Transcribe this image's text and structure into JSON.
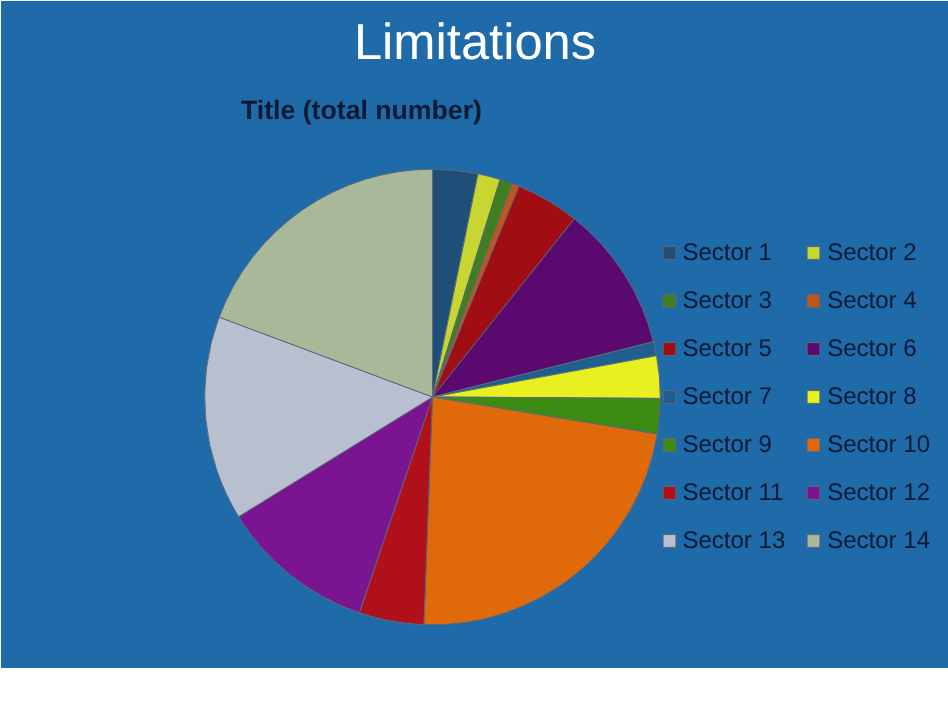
{
  "chart_data": {
    "type": "pie",
    "title": "Limitations",
    "subtitle": "Title (total number)",
    "categories": [
      "Sector 1",
      "Sector 2",
      "Sector 3",
      "Sector 4",
      "Sector 5",
      "Sector 6",
      "Sector 7",
      "Sector 8",
      "Sector 9",
      "Sector 10",
      "Sector 11",
      "Sector 12",
      "Sector 13",
      "Sector 14"
    ],
    "values": [
      3.2,
      1.6,
      0.9,
      0.5,
      4.5,
      10.4,
      1.0,
      3.0,
      2.5,
      23.0,
      4.6,
      11.0,
      14.5,
      19.3
    ],
    "colors": [
      "#1f4e79",
      "#c8d632",
      "#3f7f1f",
      "#c0561a",
      "#a00d12",
      "#5a0a6e",
      "#1f5f8f",
      "#e8f020",
      "#3c8c14",
      "#e06a0a",
      "#b0101a",
      "#7a1490",
      "#b8c0d0",
      "#a8b898"
    ],
    "legend": "right"
  }
}
